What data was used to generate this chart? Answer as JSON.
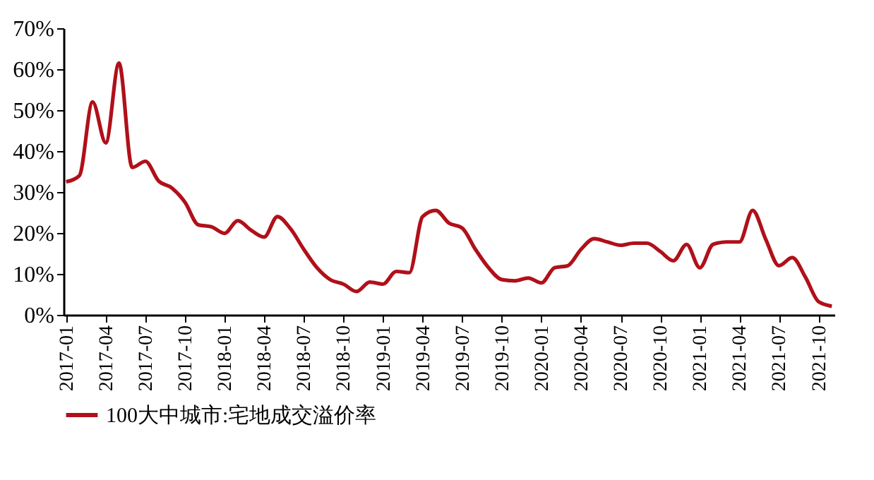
{
  "chart_data": {
    "type": "line",
    "categories": [
      "2017-01",
      null,
      null,
      "2017-04",
      null,
      null,
      "2017-07",
      null,
      null,
      "2017-10",
      null,
      null,
      "2018-01",
      null,
      null,
      "2018-04",
      null,
      null,
      "2018-07",
      null,
      null,
      "2018-10",
      null,
      null,
      "2019-01",
      null,
      null,
      "2019-04",
      null,
      null,
      "2019-07",
      null,
      null,
      "2019-10",
      null,
      null,
      "2020-01",
      null,
      null,
      "2020-04",
      null,
      null,
      "2020-07",
      null,
      null,
      "2020-10",
      null,
      null,
      "2021-01",
      null,
      null,
      "2021-04",
      null,
      null,
      "2021-07",
      null,
      null,
      "2021-10",
      null
    ],
    "series": [
      {
        "name": "100大中城市:宅地成交溢价率",
        "color": "#b0101a",
        "values": [
          32.5,
          34,
          52,
          42,
          61.5,
          36,
          37.5,
          32.7,
          31,
          27.5,
          22,
          21.5,
          19.9,
          23,
          20.7,
          19,
          24,
          21,
          16,
          11.5,
          8.6,
          7.5,
          5.7,
          8,
          7.5,
          10.6,
          10.3,
          24,
          25.5,
          22.4,
          21.2,
          16,
          11.5,
          8.6,
          8.3,
          9,
          7.8,
          11.5,
          12,
          16,
          18.6,
          17.8,
          17,
          17.5,
          17.5,
          15.5,
          13.2,
          17.2,
          11.5,
          17.2,
          17.8,
          17.8,
          25.5,
          18.4,
          12,
          14,
          9.2,
          3.2,
          2.1
        ]
      }
    ],
    "ylim": [
      0,
      70
    ],
    "yticks": [
      {
        "value": 0,
        "label": "0%"
      },
      {
        "value": 10,
        "label": "10%"
      },
      {
        "value": 20,
        "label": "20%"
      },
      {
        "value": 30,
        "label": "30%"
      },
      {
        "value": 40,
        "label": "40%"
      },
      {
        "value": 50,
        "label": "50%"
      },
      {
        "value": 60,
        "label": "60%"
      },
      {
        "value": 70,
        "label": "70%"
      }
    ],
    "legend": "bottom",
    "grid": false,
    "marker": "none",
    "line_style": "solid"
  }
}
